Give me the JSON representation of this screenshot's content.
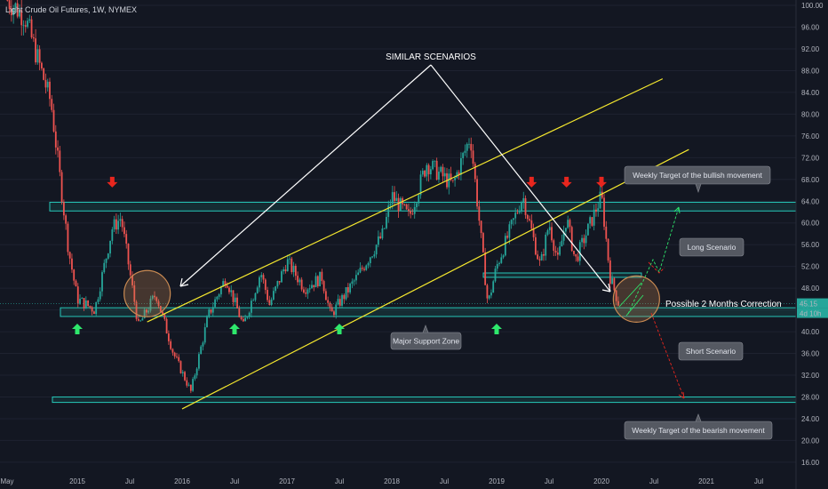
{
  "header": {
    "title": "Light Crude Oil Futures, 1W, NYMEX"
  },
  "price_tag": {
    "value": "45.15",
    "countdown": "4d 10h"
  },
  "annotations": {
    "similar": "SIMILAR SCENARIOS",
    "correction": "Possible 2 Months Correction",
    "weekly_bullish": "Weekly Target of the bullish movement",
    "long": "Long Scenario",
    "short": "Short Scenario",
    "support": "Major Support Zone",
    "weekly_bearish": "Weekly Target of the bearish movement"
  },
  "colors": {
    "up": "#26a69a",
    "down": "#ef5350",
    "channel": "#f5e82e",
    "zone": "#26c6b8",
    "arrow_up": "#2ee86c",
    "arrow_down": "#e8261e",
    "circle": "#c98a52"
  },
  "chart_data": {
    "type": "candlestick",
    "title": "Light Crude Oil Futures, 1W, NYMEX",
    "y_ticks": [
      16,
      20,
      24,
      28,
      32,
      36,
      40,
      44,
      48,
      52,
      56,
      60,
      64,
      68,
      72,
      76,
      80,
      84,
      88,
      92,
      96,
      100
    ],
    "ylim": [
      15,
      100.5
    ],
    "x_ticks": [
      "May",
      "2015",
      "Jul",
      "2016",
      "Jul",
      "2017",
      "Jul",
      "2018",
      "Jul",
      "2019",
      "Jul",
      "2020",
      "Jul",
      "2021",
      "Jul"
    ],
    "current_price": 45.15,
    "price_path": [
      [
        "2014-05",
        101
      ],
      [
        "2014-07",
        98
      ],
      [
        "2014-10",
        82
      ],
      [
        "2014-12",
        55
      ],
      [
        "2015-01",
        46
      ],
      [
        "2015-03",
        44
      ],
      [
        "2015-05",
        59
      ],
      [
        "2015-06",
        61
      ],
      [
        "2015-08",
        41
      ],
      [
        "2015-10",
        47
      ],
      [
        "2015-12",
        36
      ],
      [
        "2016-02",
        29
      ],
      [
        "2016-04",
        43
      ],
      [
        "2016-06",
        50
      ],
      [
        "2016-08",
        41
      ],
      [
        "2016-10",
        51
      ],
      [
        "2016-11",
        45
      ],
      [
        "2017-01",
        53
      ],
      [
        "2017-03",
        48
      ],
      [
        "2017-05",
        50
      ],
      [
        "2017-06",
        43
      ],
      [
        "2017-09",
        50
      ],
      [
        "2017-12",
        58
      ],
      [
        "2018-01",
        65
      ],
      [
        "2018-03",
        61
      ],
      [
        "2018-05",
        71
      ],
      [
        "2018-08",
        67
      ],
      [
        "2018-10",
        76
      ],
      [
        "2018-12",
        45
      ],
      [
        "2019-01",
        52
      ],
      [
        "2019-04",
        65
      ],
      [
        "2019-06",
        52
      ],
      [
        "2019-07",
        60
      ],
      [
        "2019-08",
        53
      ],
      [
        "2019-09",
        61
      ],
      [
        "2019-10",
        53
      ],
      [
        "2020-01",
        65
      ],
      [
        "2020-02",
        50
      ],
      [
        "2020-03",
        45
      ]
    ],
    "zones": [
      {
        "name": "resistance",
        "low": 62.2,
        "high": 63.8
      },
      {
        "name": "mid",
        "low": 50.0,
        "high": 50.8
      },
      {
        "name": "support",
        "low": 42.8,
        "high": 44.4
      },
      {
        "name": "bearish_target",
        "low": 27.0,
        "high": 28.0
      }
    ],
    "channel_upper": [
      [
        "2015-09",
        41.8
      ],
      [
        "2020-08",
        86.5
      ]
    ],
    "channel_lower": [
      [
        "2016-01",
        25.8
      ],
      [
        "2020-11",
        73.5
      ]
    ],
    "arrows_down": [
      [
        "2015-05",
        67
      ],
      [
        "2019-05",
        67
      ],
      [
        "2019-09",
        67
      ],
      [
        "2020-01",
        67
      ]
    ],
    "arrows_up": [
      [
        "2015-01",
        41
      ],
      [
        "2016-07",
        41
      ],
      [
        "2017-07",
        41
      ],
      [
        "2019-01",
        41
      ]
    ],
    "circles": [
      [
        "2015-09",
        47
      ],
      [
        "2020-05",
        46
      ]
    ]
  }
}
